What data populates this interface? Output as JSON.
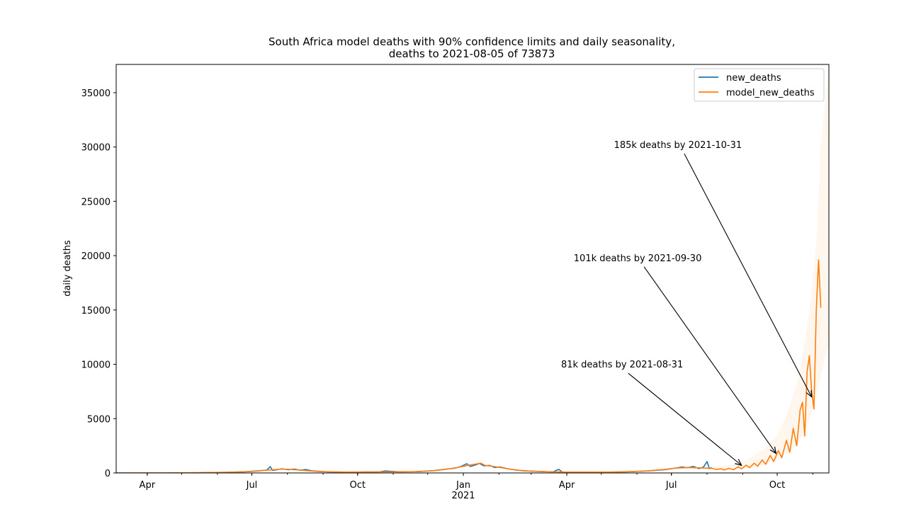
{
  "chart_data": {
    "type": "line",
    "title": "South Africa model deaths with 90% confidence limits and daily seasonality,\ndeaths to 2021-08-05 of 73873",
    "ylabel": "daily deaths",
    "xlabel": "",
    "xlim": [
      "2020-03-05",
      "2021-11-15"
    ],
    "ylim": [
      0,
      37600
    ],
    "yticks": [
      0,
      5000,
      10000,
      15000,
      20000,
      25000,
      30000,
      35000
    ],
    "xticks": [
      {
        "date": "2020-04-01",
        "label": "Apr"
      },
      {
        "date": "2020-07-01",
        "label": "Jul"
      },
      {
        "date": "2020-10-01",
        "label": "Oct"
      },
      {
        "date": "2021-01-01",
        "label": "Jan",
        "sublabel": "2021"
      },
      {
        "date": "2021-04-01",
        "label": "Apr"
      },
      {
        "date": "2021-07-01",
        "label": "Jul"
      },
      {
        "date": "2021-10-01",
        "label": "Oct"
      }
    ],
    "grid": false,
    "legend_position": "top-right",
    "series": [
      {
        "name": "new_deaths",
        "color": "#1f77b4",
        "points": [
          [
            "2020-03-05",
            0
          ],
          [
            "2020-04-15",
            3
          ],
          [
            "2020-05-15",
            20
          ],
          [
            "2020-06-10",
            60
          ],
          [
            "2020-06-25",
            110
          ],
          [
            "2020-07-05",
            180
          ],
          [
            "2020-07-10",
            230
          ],
          [
            "2020-07-14",
            270
          ],
          [
            "2020-07-17",
            580
          ],
          [
            "2020-07-19",
            240
          ],
          [
            "2020-07-23",
            300
          ],
          [
            "2020-07-27",
            380
          ],
          [
            "2020-08-02",
            300
          ],
          [
            "2020-08-07",
            360
          ],
          [
            "2020-08-12",
            250
          ],
          [
            "2020-08-17",
            310
          ],
          [
            "2020-08-22",
            200
          ],
          [
            "2020-08-28",
            150
          ],
          [
            "2020-09-05",
            100
          ],
          [
            "2020-09-20",
            80
          ],
          [
            "2020-10-05",
            90
          ],
          [
            "2020-10-20",
            100
          ],
          [
            "2020-10-25",
            180
          ],
          [
            "2020-11-05",
            110
          ],
          [
            "2020-11-20",
            120
          ],
          [
            "2020-12-05",
            200
          ],
          [
            "2020-12-15",
            320
          ],
          [
            "2020-12-25",
            450
          ],
          [
            "2020-12-30",
            600
          ],
          [
            "2021-01-04",
            850
          ],
          [
            "2021-01-07",
            600
          ],
          [
            "2021-01-12",
            750
          ],
          [
            "2021-01-15",
            880
          ],
          [
            "2021-01-19",
            650
          ],
          [
            "2021-01-24",
            700
          ],
          [
            "2021-01-28",
            500
          ],
          [
            "2021-02-02",
            550
          ],
          [
            "2021-02-08",
            400
          ],
          [
            "2021-02-14",
            300
          ],
          [
            "2021-02-22",
            200
          ],
          [
            "2021-03-05",
            150
          ],
          [
            "2021-03-20",
            100
          ],
          [
            "2021-03-25",
            330
          ],
          [
            "2021-03-28",
            80
          ],
          [
            "2021-04-15",
            60
          ],
          [
            "2021-05-10",
            80
          ],
          [
            "2021-05-25",
            110
          ],
          [
            "2021-06-10",
            180
          ],
          [
            "2021-06-25",
            300
          ],
          [
            "2021-07-05",
            450
          ],
          [
            "2021-07-10",
            550
          ],
          [
            "2021-07-15",
            480
          ],
          [
            "2021-07-20",
            600
          ],
          [
            "2021-07-25",
            400
          ],
          [
            "2021-07-29",
            550
          ],
          [
            "2021-08-01",
            1050
          ],
          [
            "2021-08-03",
            400
          ],
          [
            "2021-08-05",
            500
          ]
        ]
      },
      {
        "name": "model_new_deaths",
        "color": "#ff7f0e",
        "points": [
          [
            "2020-03-05",
            0
          ],
          [
            "2020-04-15",
            3
          ],
          [
            "2020-05-15",
            18
          ],
          [
            "2020-06-10",
            55
          ],
          [
            "2020-06-25",
            100
          ],
          [
            "2020-07-05",
            170
          ],
          [
            "2020-07-12",
            240
          ],
          [
            "2020-07-20",
            300
          ],
          [
            "2020-07-27",
            350
          ],
          [
            "2020-08-04",
            320
          ],
          [
            "2020-08-12",
            260
          ],
          [
            "2020-08-20",
            190
          ],
          [
            "2020-08-28",
            140
          ],
          [
            "2020-09-10",
            95
          ],
          [
            "2020-09-25",
            80
          ],
          [
            "2020-10-10",
            85
          ],
          [
            "2020-10-25",
            95
          ],
          [
            "2020-11-10",
            105
          ],
          [
            "2020-11-25",
            130
          ],
          [
            "2020-12-08",
            220
          ],
          [
            "2020-12-18",
            350
          ],
          [
            "2020-12-28",
            520
          ],
          [
            "2021-01-05",
            700
          ],
          [
            "2021-01-12",
            820
          ],
          [
            "2021-01-16",
            900
          ],
          [
            "2021-01-20",
            700
          ],
          [
            "2021-01-26",
            620
          ],
          [
            "2021-02-03",
            480
          ],
          [
            "2021-02-10",
            360
          ],
          [
            "2021-02-18",
            250
          ],
          [
            "2021-03-01",
            160
          ],
          [
            "2021-03-15",
            110
          ],
          [
            "2021-04-01",
            80
          ],
          [
            "2021-04-20",
            70
          ],
          [
            "2021-05-10",
            85
          ],
          [
            "2021-05-25",
            115
          ],
          [
            "2021-06-10",
            190
          ],
          [
            "2021-06-25",
            320
          ],
          [
            "2021-07-05",
            440
          ],
          [
            "2021-07-15",
            500
          ],
          [
            "2021-07-25",
            470
          ],
          [
            "2021-08-05",
            430
          ],
          [
            "2021-08-09",
            320
          ],
          [
            "2021-08-13",
            380
          ],
          [
            "2021-08-16",
            280
          ],
          [
            "2021-08-20",
            420
          ],
          [
            "2021-08-24",
            300
          ],
          [
            "2021-08-28",
            560
          ],
          [
            "2021-08-31",
            380
          ],
          [
            "2021-09-04",
            720
          ],
          [
            "2021-09-07",
            480
          ],
          [
            "2021-09-11",
            900
          ],
          [
            "2021-09-14",
            620
          ],
          [
            "2021-09-18",
            1200
          ],
          [
            "2021-09-21",
            800
          ],
          [
            "2021-09-25",
            1600
          ],
          [
            "2021-09-28",
            1050
          ],
          [
            "2021-10-02",
            2050
          ],
          [
            "2021-10-05",
            1400
          ],
          [
            "2021-10-09",
            3000
          ],
          [
            "2021-10-12",
            1900
          ],
          [
            "2021-10-15",
            4100
          ],
          [
            "2021-10-18",
            2500
          ],
          [
            "2021-10-21",
            5800
          ],
          [
            "2021-10-23",
            6500
          ],
          [
            "2021-10-25",
            3400
          ],
          [
            "2021-10-27",
            9300
          ],
          [
            "2021-10-29",
            10800
          ],
          [
            "2021-10-31",
            7500
          ],
          [
            "2021-11-02",
            5900
          ],
          [
            "2021-11-04",
            15000
          ],
          [
            "2021-11-06",
            19600
          ],
          [
            "2021-11-08",
            15200
          ]
        ]
      }
    ],
    "confidence_band": [
      [
        "2021-08-05",
        450,
        600
      ],
      [
        "2021-08-20",
        320,
        700
      ],
      [
        "2021-09-05",
        450,
        1200
      ],
      [
        "2021-09-20",
        750,
        2200
      ],
      [
        "2021-10-01",
        1200,
        3500
      ],
      [
        "2021-10-10",
        1800,
        5500
      ],
      [
        "2021-10-20",
        2800,
        9000
      ],
      [
        "2021-10-28",
        4500,
        14000
      ],
      [
        "2021-11-04",
        7000,
        21000
      ],
      [
        "2021-11-08",
        9000,
        30000
      ],
      [
        "2021-11-15",
        12000,
        37600
      ]
    ],
    "annotations": [
      {
        "text": "81k deaths by 2021-08-31",
        "text_at": [
          "2021-03-27",
          9700
        ],
        "arrow_to": [
          "2021-08-31",
          700
        ]
      },
      {
        "text": "101k deaths by 2021-09-30",
        "text_at": [
          "2021-04-07",
          19500
        ],
        "arrow_to": [
          "2021-09-30",
          1800
        ]
      },
      {
        "text": "185k deaths by 2021-10-31",
        "text_at": [
          "2021-05-12",
          29900
        ],
        "arrow_to": [
          "2021-10-31",
          7000
        ]
      }
    ]
  }
}
